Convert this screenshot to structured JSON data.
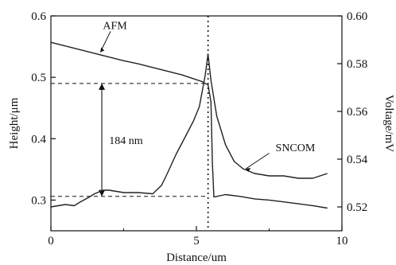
{
  "chart_data": {
    "type": "line",
    "xlabel": "Distance/um",
    "ylabel_left": "Height/μm",
    "ylabel_right": "Voltage/mV",
    "xlim": [
      0,
      10
    ],
    "ylim_left": [
      0.25,
      0.6
    ],
    "ylim_right": [
      0.51,
      0.6
    ],
    "x_ticks": [
      0,
      5,
      10
    ],
    "x_tick_labels": [
      "0",
      "5",
      "10"
    ],
    "y_left_ticks": [
      0.3,
      0.4,
      0.5,
      0.6
    ],
    "y_left_tick_labels": [
      "0.3",
      "0.4",
      "0.5",
      "0.6"
    ],
    "y_right_ticks": [
      0.52,
      0.54,
      0.56,
      0.58,
      0.6
    ],
    "y_right_tick_labels": [
      "0.52",
      "0.54",
      "0.56",
      "0.58",
      "0.60"
    ],
    "grid": false,
    "series": [
      {
        "name": "AFM",
        "axis": "left",
        "x": [
          0,
          0.5,
          1,
          1.5,
          2,
          2.5,
          3,
          3.5,
          4,
          4.5,
          5,
          5.2,
          5.3,
          5.4,
          5.5,
          5.55,
          5.6,
          6,
          6.5,
          7,
          7.5,
          8,
          8.5,
          9,
          9.5
        ],
        "y": [
          0.557,
          0.551,
          0.545,
          0.539,
          0.533,
          0.527,
          0.522,
          0.516,
          0.51,
          0.504,
          0.496,
          0.493,
          0.49,
          0.488,
          0.46,
          0.36,
          0.305,
          0.309,
          0.306,
          0.302,
          0.3,
          0.297,
          0.294,
          0.291,
          0.287
        ]
      },
      {
        "name": "SNCOM",
        "axis": "right",
        "x": [
          0,
          0.5,
          0.8,
          1,
          1.3,
          1.5,
          1.8,
          2,
          2.5,
          3,
          3.5,
          3.8,
          4,
          4.3,
          4.6,
          4.9,
          5.1,
          5.3,
          5.4,
          5.5,
          5.7,
          6,
          6.3,
          6.6,
          7,
          7.5,
          8,
          8.5,
          9,
          9.5
        ],
        "y": [
          0.52,
          0.521,
          0.5205,
          0.522,
          0.524,
          0.5255,
          0.527,
          0.527,
          0.526,
          0.526,
          0.5255,
          0.529,
          0.534,
          0.542,
          0.549,
          0.556,
          0.562,
          0.575,
          0.584,
          0.573,
          0.558,
          0.546,
          0.539,
          0.536,
          0.534,
          0.533,
          0.533,
          0.532,
          0.532,
          0.534
        ]
      }
    ],
    "annotations": [
      {
        "text": "AFM"
      },
      {
        "text": "SNCOM"
      },
      {
        "text": "184 nm"
      }
    ],
    "reference_lines": {
      "vertical_x": 5.4,
      "dashed_height_top": 0.49,
      "dashed_height_bottom": 0.306
    }
  },
  "colors": {
    "line": "#222222",
    "axis": "#111111",
    "background": "#ffffff"
  }
}
